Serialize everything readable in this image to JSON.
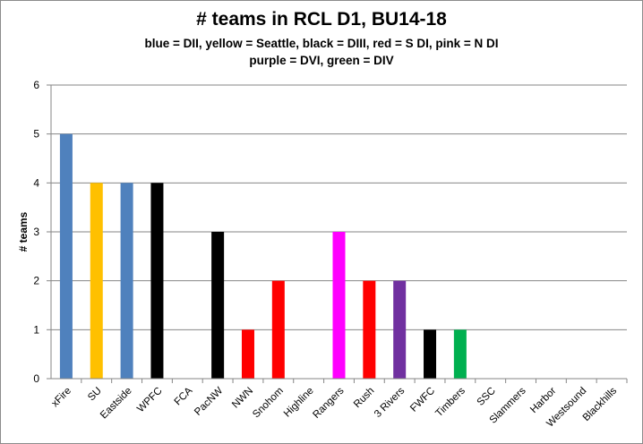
{
  "chart_data": {
    "type": "bar",
    "title": "# teams in RCL D1, BU14-18",
    "subtitle_line1": "blue = DII, yellow = Seattle, black = DIII, red = S DI, pink = N DI",
    "subtitle_line2": "purple = DVI, green = DIV",
    "xlabel": "",
    "ylabel": "# teams",
    "ylim": [
      0,
      6
    ],
    "yticks": [
      0,
      1,
      2,
      3,
      4,
      5,
      6
    ],
    "grid": true,
    "categories": [
      "xFire",
      "SU",
      "Eastside",
      "WPFC",
      "FCA",
      "PacNW",
      "NWN",
      "Snohom",
      "Highline",
      "Rangers",
      "Rush",
      "3 Rivers",
      "FWFC",
      "Timbers",
      "SSC",
      "Slammers",
      "Harbor",
      "Westsound",
      "Blackhills"
    ],
    "values": [
      5,
      4,
      4,
      4,
      0,
      3,
      1,
      2,
      0,
      3,
      2,
      2,
      1,
      1,
      0,
      0,
      0,
      0,
      0
    ],
    "colors": [
      "#4f81bd",
      "#ffc000",
      "#4f81bd",
      "#000000",
      "#000000",
      "#000000",
      "#ff0000",
      "#ff0000",
      "#ff0000",
      "#ff00ff",
      "#ff0000",
      "#7030a0",
      "#000000",
      "#00b050",
      "#000000",
      "#000000",
      "#000000",
      "#000000",
      "#000000"
    ]
  }
}
